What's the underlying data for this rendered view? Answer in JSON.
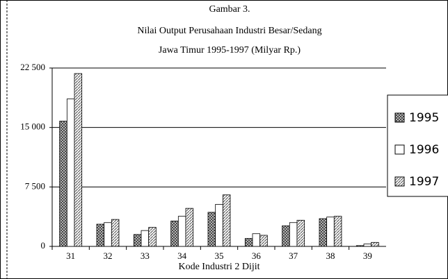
{
  "chart_data": {
    "type": "bar",
    "title": [
      "Gambar 3.",
      "Nilai Output Perusahaan Industri Besar/Sedang",
      "Jawa Timur 1995-1997 (Milyar Rp.)"
    ],
    "x_label": "Kode Industri 2 Dijit",
    "categories": [
      "31",
      "32",
      "33",
      "34",
      "35",
      "36",
      "37",
      "38",
      "39"
    ],
    "series": [
      {
        "name": "1995",
        "color": "#444444",
        "values": [
          15800,
          2800,
          1500,
          3200,
          4300,
          1000,
          2600,
          3500,
          100
        ]
      },
      {
        "name": "1996",
        "color": "#ffffff",
        "values": [
          18600,
          3000,
          2000,
          3800,
          5300,
          1600,
          3000,
          3700,
          300
        ]
      },
      {
        "name": "1997",
        "color": "#666666",
        "values": [
          21800,
          3400,
          2400,
          4800,
          6500,
          1400,
          3300,
          3800,
          500
        ]
      }
    ],
    "ylim": [
      0,
      22500
    ],
    "yticks": [
      0,
      {
        "value": 7500,
        "label": "7 500"
      },
      {
        "value": 15000,
        "label": "15 000"
      },
      {
        "value": 22500,
        "label": "22 500"
      }
    ],
    "grid": true,
    "legend": "right"
  }
}
